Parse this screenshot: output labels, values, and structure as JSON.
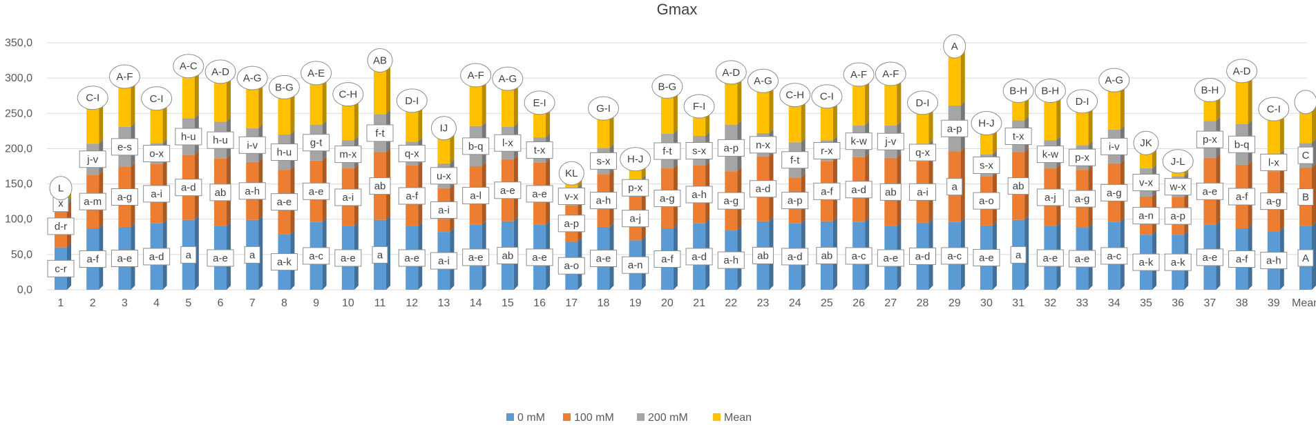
{
  "chart_data": {
    "type": "bar",
    "stacked": true,
    "title": "Gmax",
    "xlabel": "",
    "ylabel": "",
    "ylim": [
      0,
      350
    ],
    "yticks": [
      "0,0",
      "50,0",
      "100,0",
      "150,0",
      "200,0",
      "250,0",
      "300,0",
      "350,0"
    ],
    "grid": true,
    "legend_position": "bottom",
    "categories": [
      "1",
      "2",
      "3",
      "4",
      "5",
      "6",
      "7",
      "8",
      "9",
      "10",
      "11",
      "12",
      "13",
      "14",
      "15",
      "16",
      "17",
      "18",
      "19",
      "20",
      "21",
      "22",
      "23",
      "24",
      "25",
      "26",
      "27",
      "28",
      "29",
      "30",
      "31",
      "32",
      "33",
      "34",
      "35",
      "36",
      "37",
      "38",
      "39",
      "Mean"
    ],
    "series": [
      {
        "name": "0 mM",
        "color": "#5b9bd5",
        "values": [
          60,
          87,
          89,
          94,
          99,
          90,
          99,
          79,
          96,
          90,
          99,
          90,
          82,
          92,
          97,
          92,
          68,
          89,
          70,
          87,
          94,
          84,
          97,
          94,
          97,
          96,
          90,
          95,
          96,
          91,
          99,
          90,
          88,
          96,
          78,
          78,
          92,
          87,
          83,
          90
        ]
      },
      {
        "name": "100 mM",
        "color": "#ed7d31",
        "values": [
          60,
          76,
          85,
          84,
          92,
          96,
          82,
          91,
          87,
          82,
          96,
          86,
          62,
          83,
          88,
          88,
          52,
          75,
          62,
          85,
          82,
          84,
          92,
          65,
          85,
          92,
          97,
          87,
          100,
          70,
          96,
          82,
          82,
          83,
          54,
          53,
          95,
          90,
          85,
          83
        ]
      },
      {
        "name": "200 mM",
        "color": "#a5a5a5",
        "values": [
          5,
          44,
          57,
          30,
          52,
          52,
          48,
          50,
          51,
          40,
          54,
          34,
          35,
          57,
          46,
          36,
          25,
          37,
          25,
          49,
          42,
          66,
          33,
          50,
          30,
          45,
          46,
          25,
          65,
          31,
          45,
          40,
          35,
          48,
          40,
          30,
          52,
          58,
          25,
          35
        ]
      },
      {
        "name": "Mean",
        "color": "#ffc000",
        "values": [
          21,
          67,
          73,
          65,
          76,
          73,
          73,
          69,
          75,
          67,
          78,
          60,
          52,
          74,
          70,
          51,
          22,
          58,
          30,
          69,
          44,
          76,
          76,
          69,
          64,
          74,
          75,
          60,
          86,
          46,
          44,
          72,
          64,
          72,
          38,
          23,
          46,
          77,
          65,
          60
        ]
      }
    ],
    "letters": {
      "s0": [
        "c-r",
        "a-f",
        "a-e",
        "a-d",
        "a",
        "a-e",
        "a",
        "a-k",
        "a-c",
        "a-e",
        "a",
        "a-e",
        "a-i",
        "a-e",
        "ab",
        "a-e",
        "a-o",
        "a-e",
        "a-n",
        "a-f",
        "a-d",
        "a-h",
        "ab",
        "a-d",
        "ab",
        "a-c",
        "a-e",
        "a-d",
        "a-c",
        "a-e",
        "a",
        "a-e",
        "a-e",
        "a-c",
        "a-k",
        "a-k",
        "a-e",
        "a-f",
        "a-h",
        "A"
      ],
      "s1": [
        "d-r",
        "a-m",
        "a-g",
        "a-i",
        "a-d",
        "ab",
        "a-h",
        "a-e",
        "a-e",
        "a-i",
        "ab",
        "a-f",
        "a-i",
        "a-l",
        "a-e",
        "a-e",
        "a-p",
        "a-h",
        "a-j",
        "a-g",
        "a-h",
        "a-g",
        "a-d",
        "a-p",
        "a-f",
        "a-d",
        "ab",
        "a-i",
        "a",
        "a-o",
        "ab",
        "a-j",
        "a-g",
        "a-g",
        "a-n",
        "a-p",
        "a-e",
        "a-f",
        "a-g",
        "B"
      ],
      "s2": [
        "x",
        "j-v",
        "e-s",
        "o-x",
        "h-u",
        "h-u",
        "i-v",
        "h-u",
        "g-t",
        "m-x",
        "f-t",
        "q-x",
        "u-x",
        "b-q",
        "l-x",
        "t-x",
        "v-x",
        "s-x",
        "p-x",
        "f-t",
        "s-x",
        "a-p",
        "n-x",
        "f-t",
        "r-x",
        "k-w",
        "j-v",
        "q-x",
        "a-p",
        "s-x",
        "t-x",
        "k-w",
        "p-x",
        "i-v",
        "v-x",
        "w-x",
        "p-x",
        "b-q",
        "l-x",
        "C"
      ],
      "s3": [
        "L",
        "C-I",
        "A-F",
        "C-I",
        "A-C",
        "A-D",
        "A-G",
        "B-G",
        "A-E",
        "C-H",
        "AB",
        "D-I",
        "IJ",
        "A-F",
        "A-G",
        "E-I",
        "KL",
        "G-I",
        "H-J",
        "B-G",
        "F-I",
        "A-D",
        "A-G",
        "C-H",
        "C-I",
        "A-F",
        "A-F",
        "D-I",
        "A",
        "H-J",
        "B-H",
        "B-H",
        "D-I",
        "A-G",
        "JK",
        "J-L",
        "B-H",
        "A-D",
        "C-I",
        ""
      ]
    }
  }
}
